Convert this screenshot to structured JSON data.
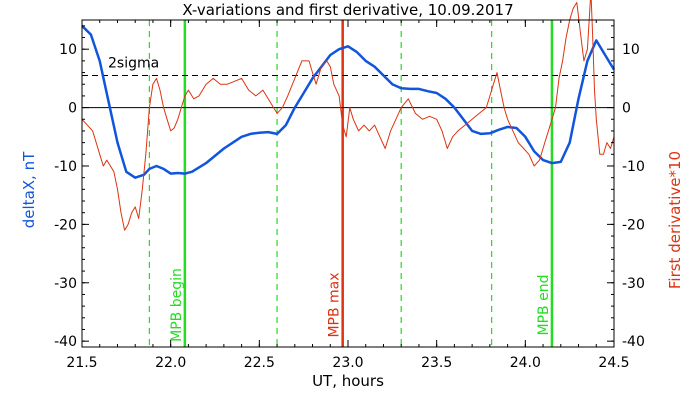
{
  "chart_data": {
    "type": "line",
    "title": "X-variations and first derivative, 10.09.2017",
    "xlabel": "UT, hours",
    "ylabel_left": "deltaX, nT",
    "ylabel_right": "First derivative*10",
    "xlim": [
      21.5,
      24.5
    ],
    "ylim_left": [
      -41,
      15
    ],
    "ylim_right": [
      -41,
      15
    ],
    "x_ticks": [
      21.5,
      22.0,
      22.5,
      23.0,
      23.5,
      24.0,
      24.5
    ],
    "x_tick_labels": [
      "21.5",
      "22.0",
      "22.5",
      "23.0",
      "23.5",
      "24.0",
      "24.5"
    ],
    "y_ticks_left": [
      10,
      0,
      -10,
      -20,
      -30,
      -40
    ],
    "y_tick_labels_left": [
      "10",
      "0",
      "-10",
      "-20",
      "-30",
      "-40"
    ],
    "y_ticks_right": [
      10,
      0,
      -10,
      -20,
      -30,
      -40
    ],
    "y_tick_labels_right": [
      "10",
      "0",
      "-10",
      "-20",
      "-30",
      "-40"
    ],
    "zero_line": 0,
    "sigma_line": {
      "y": 5.5,
      "label": "2sigma"
    },
    "vertical_markers": [
      {
        "x": 22.08,
        "label": "MPB begin",
        "color": "#22dd22",
        "style": "solid"
      },
      {
        "x": 22.97,
        "label": "MPB max",
        "color": "#dd3311",
        "style": "solid"
      },
      {
        "x": 24.15,
        "label": "MPB end",
        "color": "#22dd22",
        "style": "solid"
      },
      {
        "x": 21.88,
        "label": "",
        "color": "#22dd22",
        "style": "dashed"
      },
      {
        "x": 22.6,
        "label": "",
        "color": "#22dd22",
        "style": "dashed"
      },
      {
        "x": 23.3,
        "label": "",
        "color": "#22dd22",
        "style": "dashed"
      },
      {
        "x": 23.81,
        "label": "",
        "color": "#22dd22",
        "style": "dashed"
      }
    ],
    "series": [
      {
        "name": "deltaX",
        "axis": "left",
        "color": "#1155dd",
        "x": [
          21.5,
          21.55,
          21.6,
          21.65,
          21.7,
          21.75,
          21.8,
          21.85,
          21.88,
          21.92,
          21.96,
          22.0,
          22.04,
          22.08,
          22.12,
          22.2,
          22.3,
          22.4,
          22.45,
          22.5,
          22.55,
          22.6,
          22.65,
          22.7,
          22.75,
          22.8,
          22.85,
          22.9,
          22.95,
          23.0,
          23.05,
          23.1,
          23.15,
          23.2,
          23.25,
          23.3,
          23.35,
          23.4,
          23.45,
          23.5,
          23.55,
          23.6,
          23.65,
          23.7,
          23.75,
          23.8,
          23.85,
          23.9,
          23.95,
          24.0,
          24.05,
          24.1,
          24.15,
          24.2,
          24.25,
          24.3,
          24.35,
          24.4,
          24.45,
          24.5
        ],
        "y": [
          14,
          12.5,
          8,
          1,
          -6,
          -11,
          -12,
          -11.5,
          -10.5,
          -10,
          -10.5,
          -11.3,
          -11.2,
          -11.3,
          -11,
          -9.5,
          -7,
          -5,
          -4.5,
          -4.3,
          -4.2,
          -4.5,
          -3,
          0,
          2.5,
          5,
          7,
          9,
          10,
          10.5,
          9.5,
          8,
          7,
          5.5,
          4,
          3.3,
          3.2,
          3.2,
          2.8,
          2.5,
          1.5,
          0,
          -2,
          -4,
          -4.5,
          -4.4,
          -3.8,
          -3.3,
          -3.5,
          -5,
          -7.5,
          -9,
          -9.5,
          -9.3,
          -6,
          1.5,
          8,
          11.5,
          9,
          6.5
        ]
      },
      {
        "name": "First derivative*10",
        "axis": "right",
        "color": "#dd3311",
        "x": [
          21.5,
          21.53,
          21.56,
          21.58,
          21.6,
          21.62,
          21.64,
          21.66,
          21.68,
          21.7,
          21.72,
          21.74,
          21.76,
          21.78,
          21.8,
          21.82,
          21.84,
          21.86,
          21.88,
          21.9,
          21.92,
          21.94,
          21.96,
          21.98,
          22.0,
          22.02,
          22.04,
          22.06,
          22.08,
          22.1,
          22.13,
          22.16,
          22.2,
          22.24,
          22.28,
          22.32,
          22.36,
          22.4,
          22.44,
          22.48,
          22.52,
          22.56,
          22.6,
          22.63,
          22.66,
          22.7,
          22.74,
          22.78,
          22.8,
          22.82,
          22.85,
          22.88,
          22.9,
          22.92,
          22.95,
          22.97,
          22.99,
          23.01,
          23.03,
          23.06,
          23.09,
          23.12,
          23.15,
          23.18,
          23.21,
          23.24,
          23.27,
          23.3,
          23.34,
          23.38,
          23.42,
          23.46,
          23.5,
          23.53,
          23.56,
          23.59,
          23.62,
          23.66,
          23.7,
          23.74,
          23.78,
          23.8,
          23.82,
          23.84,
          23.86,
          23.88,
          23.9,
          23.93,
          23.96,
          23.99,
          24.02,
          24.05,
          24.08,
          24.11,
          24.14,
          24.17,
          24.19,
          24.21,
          24.23,
          24.25,
          24.27,
          24.29,
          24.31,
          24.33,
          24.35,
          24.36,
          24.37,
          24.38,
          24.39,
          24.4,
          24.42,
          24.44,
          24.46,
          24.48,
          24.5
        ],
        "y": [
          -2,
          -3,
          -4,
          -6,
          -8,
          -10,
          -9,
          -10,
          -11,
          -14,
          -18,
          -21,
          -20,
          -18,
          -17,
          -19,
          -14,
          -8,
          0,
          4,
          5,
          3,
          0,
          -2,
          -4,
          -3.5,
          -2,
          0,
          2,
          3,
          1.5,
          2,
          4,
          5,
          4,
          4,
          4.5,
          5,
          3,
          2,
          3,
          1,
          -1,
          0,
          2,
          5,
          8,
          8,
          6,
          4,
          7,
          8,
          7,
          4,
          2,
          -3,
          -5,
          0,
          -2,
          -4,
          -3,
          -4,
          -3,
          -5,
          -7,
          -4,
          -2,
          0,
          1.5,
          -1,
          -2,
          -1.5,
          -2,
          -4,
          -7,
          -5,
          -4,
          -3,
          -2,
          -1,
          0,
          2,
          4,
          6,
          3,
          0,
          -2,
          -4,
          -6,
          -7,
          -8,
          -10,
          -9,
          -6,
          -3,
          0,
          5,
          8,
          12,
          15,
          17,
          18,
          13,
          8,
          10,
          15,
          20,
          12,
          3,
          -2,
          -8,
          -8,
          -6,
          -7,
          -5
        ]
      }
    ]
  }
}
